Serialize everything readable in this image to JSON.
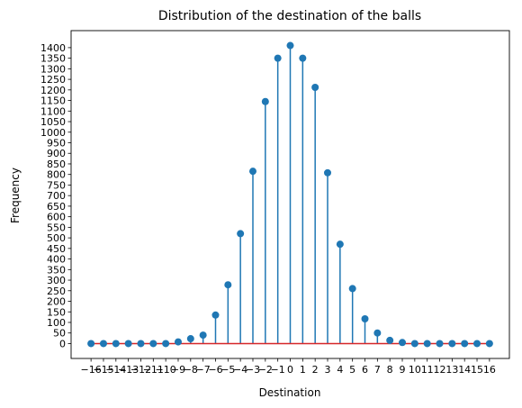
{
  "chart_data": {
    "type": "stem",
    "title": "Distribution of the destination of the balls",
    "xlabel": "Destination",
    "ylabel": "Frequency",
    "x": [
      -16,
      -15,
      -14,
      -13,
      -12,
      -11,
      -10,
      -9,
      -8,
      -7,
      -6,
      -5,
      -4,
      -3,
      -2,
      -1,
      0,
      1,
      2,
      3,
      4,
      5,
      6,
      7,
      8,
      9,
      10,
      11,
      12,
      13,
      14,
      15,
      16
    ],
    "values": [
      0,
      0,
      0,
      0,
      0,
      0,
      0,
      8,
      23,
      40,
      135,
      278,
      520,
      815,
      1145,
      1350,
      1410,
      1350,
      1212,
      808,
      470,
      260,
      117,
      50,
      15,
      5,
      0,
      0,
      0,
      0,
      0,
      0,
      0
    ],
    "xticks": [
      "−16",
      "−15",
      "−14",
      "−13",
      "−12",
      "−11",
      "−10",
      "−9",
      "−8",
      "−7",
      "−6",
      "−5",
      "−4",
      "−3",
      "−2",
      "−1",
      "0",
      "1",
      "2",
      "3",
      "4",
      "5",
      "6",
      "7",
      "8",
      "9",
      "10",
      "11",
      "12",
      "13",
      "14",
      "15",
      "16"
    ],
    "yticks": [
      0,
      50,
      100,
      150,
      200,
      250,
      300,
      350,
      400,
      450,
      500,
      550,
      600,
      650,
      700,
      750,
      800,
      850,
      900,
      950,
      1000,
      1050,
      1100,
      1150,
      1200,
      1250,
      1300,
      1350,
      1400
    ],
    "xlim": [
      -17.6,
      17.6
    ],
    "ylim": [
      -70.5,
      1480.5
    ],
    "grid": false,
    "colors": {
      "stem": "#1f77b4",
      "marker": "#1f77b4",
      "baseline": "#d62728"
    }
  }
}
